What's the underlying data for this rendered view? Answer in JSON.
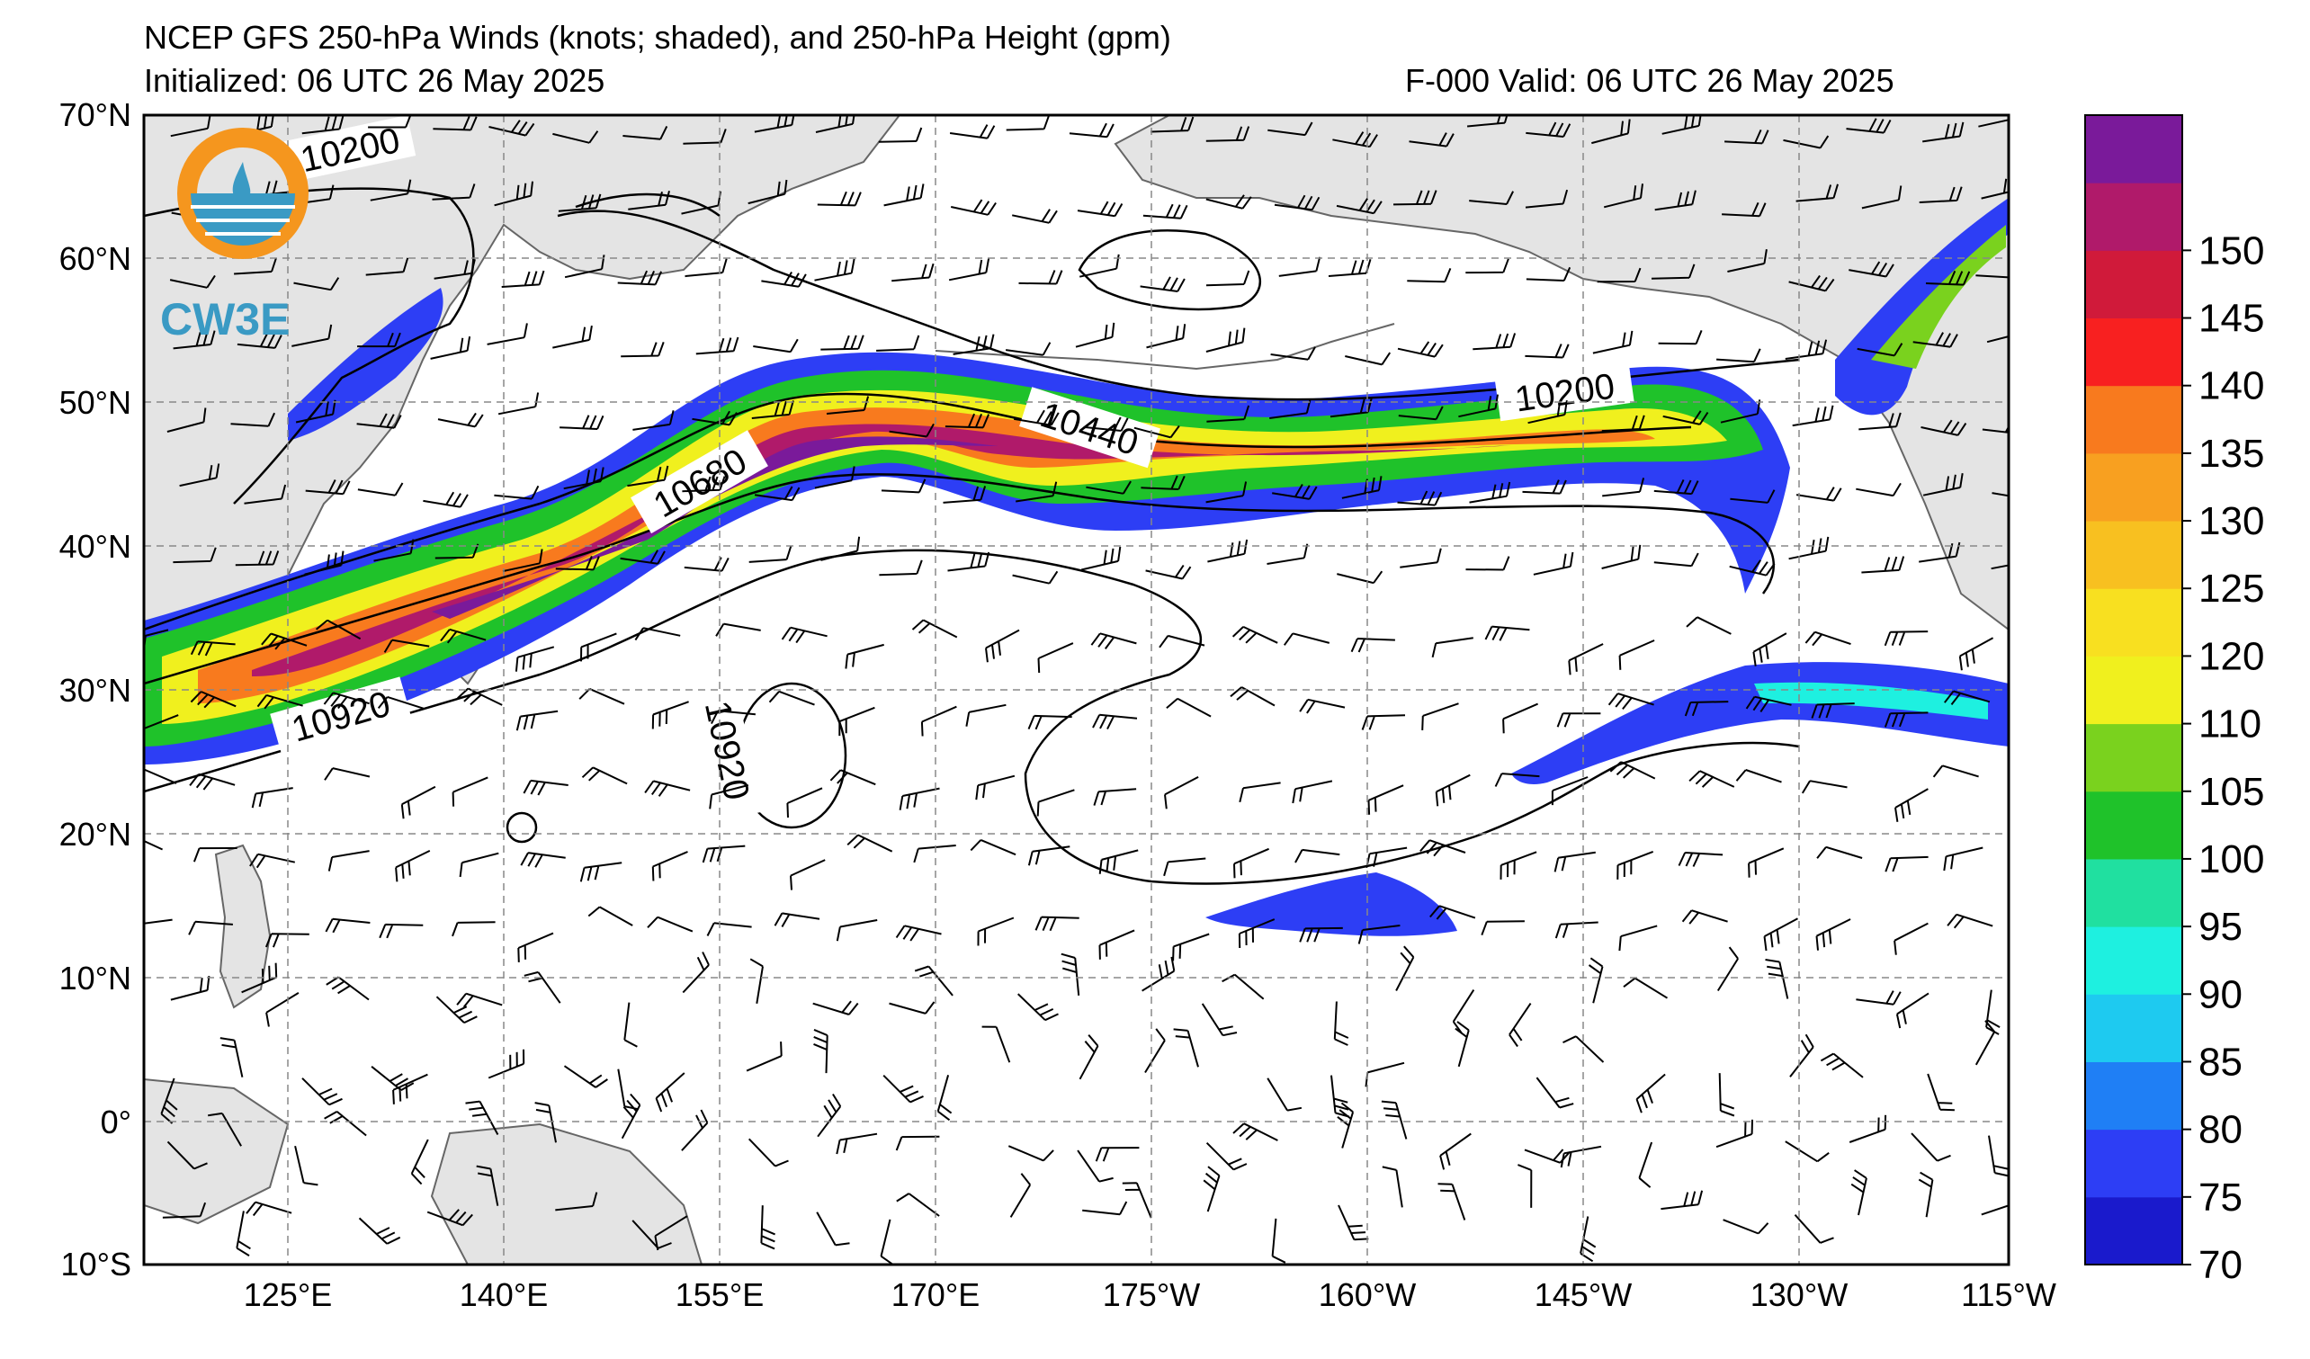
{
  "title": {
    "line1": "NCEP GFS 250-hPa Winds (knots; shaded), and 250-hPa Height (gpm)",
    "initialized": "Initialized: 06 UTC 26 May 2025",
    "valid": "F-000  Valid: 06 UTC 26 May 2025"
  },
  "logo": {
    "text": "CW3E"
  },
  "axes": {
    "lat_labels": [
      "70°N",
      "60°N",
      "50°N",
      "40°N",
      "30°N",
      "20°N",
      "10°N",
      "0°",
      "10°S"
    ],
    "lon_labels": [
      "125°E",
      "140°E",
      "155°E",
      "170°E",
      "175°W",
      "160°W",
      "145°W",
      "130°W",
      "115°W"
    ]
  },
  "colorbar": {
    "labels": [
      "70",
      "75",
      "80",
      "85",
      "90",
      "95",
      "100",
      "105",
      "110",
      "120",
      "125",
      "130",
      "135",
      "140",
      "145",
      "150"
    ],
    "colors": [
      "#1a1acc",
      "#2d3ef5",
      "#1f7ff5",
      "#1ecaf0",
      "#1ef0e0",
      "#20e0a0",
      "#1fc22a",
      "#7ad21e",
      "#f0f01e",
      "#f8e020",
      "#f8c020",
      "#f8a020",
      "#f87a1e",
      "#f82020",
      "#d01a3a",
      "#b01a6a",
      "#7a1a9a"
    ]
  },
  "contour_labels": [
    "10200",
    "10440",
    "10680",
    "10920",
    "10200",
    "10920"
  ],
  "chart_data": {
    "type": "heatmap",
    "variable_shaded": "250-hPa wind speed (knots)",
    "variable_contours": "250-hPa geopotential height (gpm)",
    "colorbar_range": [
      70,
      155
    ],
    "contour_levels": [
      10200,
      10440,
      10680,
      10920
    ],
    "lat_range": [
      "10°S",
      "70°N"
    ],
    "lon_range": [
      "115°E",
      "115°W"
    ],
    "grid": true
  }
}
